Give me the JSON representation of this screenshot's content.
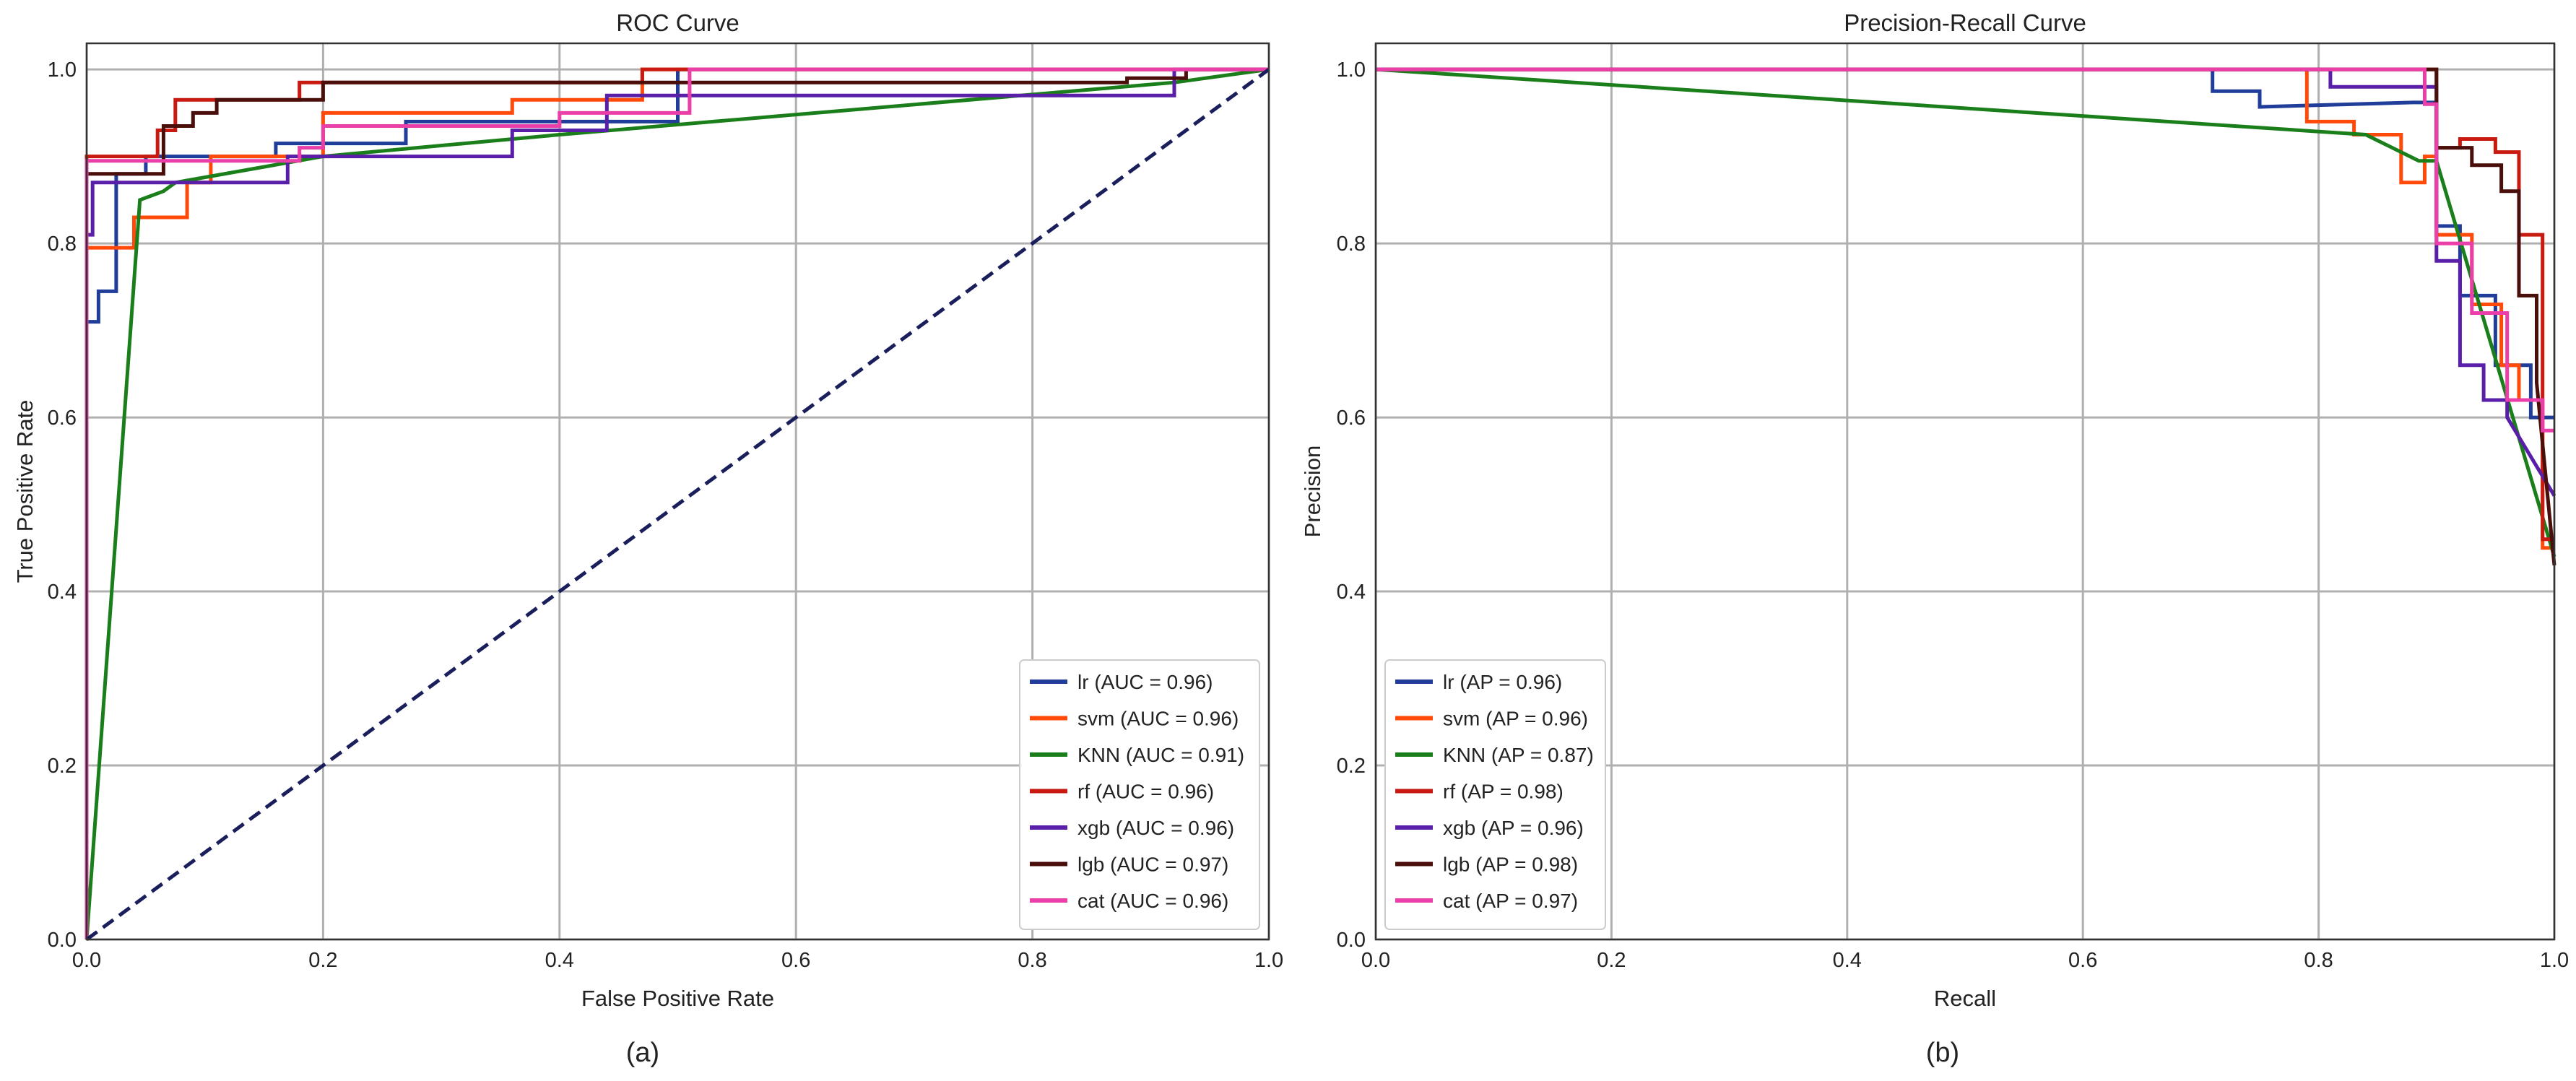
{
  "chart_data": [
    {
      "type": "line",
      "title": "ROC Curve",
      "xlabel": "False Positive Rate",
      "ylabel": "True Positive Rate",
      "panel_label": "(a)",
      "xlim": [
        0,
        1
      ],
      "ylim": [
        0,
        1.03
      ],
      "x_ticks": [
        "0.0",
        "0.2",
        "0.4",
        "0.6",
        "0.8",
        "1.0"
      ],
      "y_ticks": [
        "0.0",
        "0.2",
        "0.4",
        "0.6",
        "0.8",
        "1.0"
      ],
      "grid": true,
      "legend_position": "lower-right",
      "series": [
        {
          "name": "lr",
          "legend": "lr (AUC = 0.96)",
          "color": "#1f3d99",
          "x": [
            0,
            0,
            0.01,
            0.01,
            0.025,
            0.025,
            0.05,
            0.05,
            0.16,
            0.16,
            0.27,
            0.27,
            0.5,
            0.5,
            1.0
          ],
          "y": [
            0,
            0.71,
            0.71,
            0.745,
            0.745,
            0.88,
            0.88,
            0.9,
            0.9,
            0.915,
            0.915,
            0.94,
            0.94,
            1.0,
            1.0
          ]
        },
        {
          "name": "svm",
          "legend": "svm (AUC = 0.96)",
          "color": "#ff4a0a",
          "x": [
            0,
            0,
            0.025,
            0.025,
            0.04,
            0.04,
            0.085,
            0.085,
            0.105,
            0.105,
            0.2,
            0.2,
            0.36,
            0.36,
            0.47,
            0.47,
            0.94,
            1.0
          ],
          "y": [
            0,
            0.795,
            0.795,
            0.795,
            0.795,
            0.83,
            0.83,
            0.87,
            0.87,
            0.9,
            0.9,
            0.95,
            0.95,
            0.965,
            0.965,
            1.0,
            1.0,
            1.0
          ]
        },
        {
          "name": "KNN",
          "legend": "KNN (AUC = 0.91)",
          "color": "#1a7f1a",
          "x": [
            0,
            0.045,
            0.065,
            0.075,
            0.2,
            0.4,
            0.92,
            1.0
          ],
          "y": [
            0,
            0.85,
            0.86,
            0.87,
            0.9,
            0.925,
            0.985,
            1.0
          ],
          "linear": true
        },
        {
          "name": "rf",
          "legend": "rf (AUC = 0.96)",
          "color": "#c81a10",
          "x": [
            0,
            0,
            0.06,
            0.06,
            0.075,
            0.075,
            0.18,
            0.18,
            0.47,
            0.47,
            1.0
          ],
          "y": [
            0,
            0.9,
            0.9,
            0.93,
            0.93,
            0.965,
            0.965,
            0.985,
            0.985,
            1.0,
            1.0
          ]
        },
        {
          "name": "xgb",
          "legend": "xgb (AUC = 0.96)",
          "color": "#5a1fa8",
          "x": [
            0,
            0,
            0.005,
            0.005,
            0.17,
            0.17,
            0.36,
            0.36,
            0.44,
            0.44,
            0.92,
            0.92,
            1.0
          ],
          "y": [
            0,
            0.81,
            0.81,
            0.87,
            0.87,
            0.9,
            0.9,
            0.93,
            0.93,
            0.97,
            0.97,
            1.0,
            1.0
          ]
        },
        {
          "name": "lgb",
          "legend": "lgb (AUC = 0.97)",
          "color": "#4a0f0a",
          "x": [
            0,
            0,
            0.065,
            0.065,
            0.09,
            0.09,
            0.11,
            0.11,
            0.2,
            0.2,
            0.88,
            0.88,
            0.93,
            0.93,
            1.0
          ],
          "y": [
            0,
            0.88,
            0.88,
            0.935,
            0.935,
            0.95,
            0.95,
            0.965,
            0.965,
            0.985,
            0.985,
            0.99,
            0.99,
            1.0,
            1.0
          ]
        },
        {
          "name": "cat",
          "legend": "cat (AUC = 0.96)",
          "color": "#ea3ea8",
          "x": [
            0,
            0,
            0.18,
            0.18,
            0.2,
            0.2,
            0.4,
            0.4,
            0.51,
            0.51,
            1.0
          ],
          "y": [
            0,
            0.895,
            0.895,
            0.91,
            0.91,
            0.935,
            0.935,
            0.95,
            0.95,
            1.0,
            1.0
          ]
        },
        {
          "name": "chance",
          "legend": "",
          "color": "#1a1f5c",
          "dashed": true,
          "x": [
            0,
            1
          ],
          "y": [
            0,
            1
          ],
          "linear": true
        }
      ]
    },
    {
      "type": "line",
      "title": "Precision-Recall Curve",
      "xlabel": "Recall",
      "ylabel": "Precision",
      "panel_label": "(b)",
      "xlim": [
        0,
        1
      ],
      "ylim": [
        0,
        1.03
      ],
      "x_ticks": [
        "0.0",
        "0.2",
        "0.4",
        "0.6",
        "0.8",
        "1.0"
      ],
      "y_ticks": [
        "0.0",
        "0.2",
        "0.4",
        "0.6",
        "0.8",
        "1.0"
      ],
      "grid": true,
      "legend_position": "lower-left",
      "series": [
        {
          "name": "lr",
          "legend": "lr (AP = 0.96)",
          "color": "#1f3d99",
          "x": [
            0,
            0.71,
            0.71,
            0.75,
            0.75,
            0.88,
            0.88,
            0.9,
            0.9,
            0.92,
            0.92,
            0.95,
            0.95,
            0.98,
            0.98,
            1.0
          ],
          "y": [
            1.0,
            1.0,
            0.975,
            0.975,
            0.957,
            0.962,
            0.962,
            0.962,
            0.82,
            0.82,
            0.74,
            0.74,
            0.66,
            0.66,
            0.6,
            0.6
          ]
        },
        {
          "name": "svm",
          "legend": "svm (AP = 0.96)",
          "color": "#ff4a0a",
          "x": [
            0,
            0.79,
            0.79,
            0.83,
            0.83,
            0.87,
            0.87,
            0.89,
            0.89,
            0.9,
            0.9,
            0.93,
            0.93,
            0.955,
            0.955,
            0.97,
            0.97,
            0.99,
            0.99,
            1.0
          ],
          "y": [
            1.0,
            1.0,
            0.94,
            0.94,
            0.925,
            0.925,
            0.87,
            0.87,
            0.9,
            0.9,
            0.81,
            0.81,
            0.73,
            0.73,
            0.66,
            0.66,
            0.62,
            0.62,
            0.45,
            0.45
          ]
        },
        {
          "name": "KNN",
          "legend": "KNN (AP = 0.87)",
          "color": "#1a7f1a",
          "x": [
            0,
            0.84,
            0.855,
            0.87,
            0.885,
            0.9,
            1.0
          ],
          "y": [
            1.0,
            0.925,
            0.915,
            0.905,
            0.895,
            0.895,
            0.44
          ],
          "linear": true
        },
        {
          "name": "rf",
          "legend": "rf (AP = 0.98)",
          "color": "#c81a10",
          "x": [
            0,
            0.9,
            0.9,
            0.92,
            0.92,
            0.95,
            0.95,
            0.97,
            0.97,
            0.99,
            0.99,
            1.0
          ],
          "y": [
            1.0,
            1.0,
            0.91,
            0.91,
            0.92,
            0.92,
            0.905,
            0.905,
            0.81,
            0.81,
            0.46,
            0.46
          ]
        },
        {
          "name": "xgb",
          "legend": "xgb (AP = 0.96)",
          "color": "#5a1fa8",
          "x": [
            0,
            0.81,
            0.81,
            0.9,
            0.9,
            0.92,
            0.92,
            0.94,
            0.94,
            0.96,
            0.96,
            1.0
          ],
          "y": [
            1.0,
            1.0,
            0.98,
            0.98,
            0.78,
            0.78,
            0.66,
            0.66,
            0.62,
            0.62,
            0.6,
            0.51
          ]
        },
        {
          "name": "lgb",
          "legend": "lgb (AP = 0.98)",
          "color": "#4a0f0a",
          "x": [
            0,
            0.875,
            0.875,
            0.9,
            0.9,
            0.93,
            0.93,
            0.955,
            0.955,
            0.97,
            0.97,
            0.985,
            0.985,
            1.0
          ],
          "y": [
            1.0,
            1.0,
            1.0,
            1.0,
            0.91,
            0.91,
            0.89,
            0.89,
            0.86,
            0.86,
            0.74,
            0.74,
            0.64,
            0.43
          ]
        },
        {
          "name": "cat",
          "legend": "cat (AP = 0.97)",
          "color": "#ea3ea8",
          "x": [
            0,
            0.89,
            0.89,
            0.9,
            0.9,
            0.93,
            0.93,
            0.96,
            0.96,
            0.99,
            0.99,
            1.0
          ],
          "y": [
            1.0,
            1.0,
            0.96,
            0.96,
            0.8,
            0.8,
            0.72,
            0.72,
            0.62,
            0.62,
            0.585,
            0.585
          ]
        }
      ]
    }
  ]
}
